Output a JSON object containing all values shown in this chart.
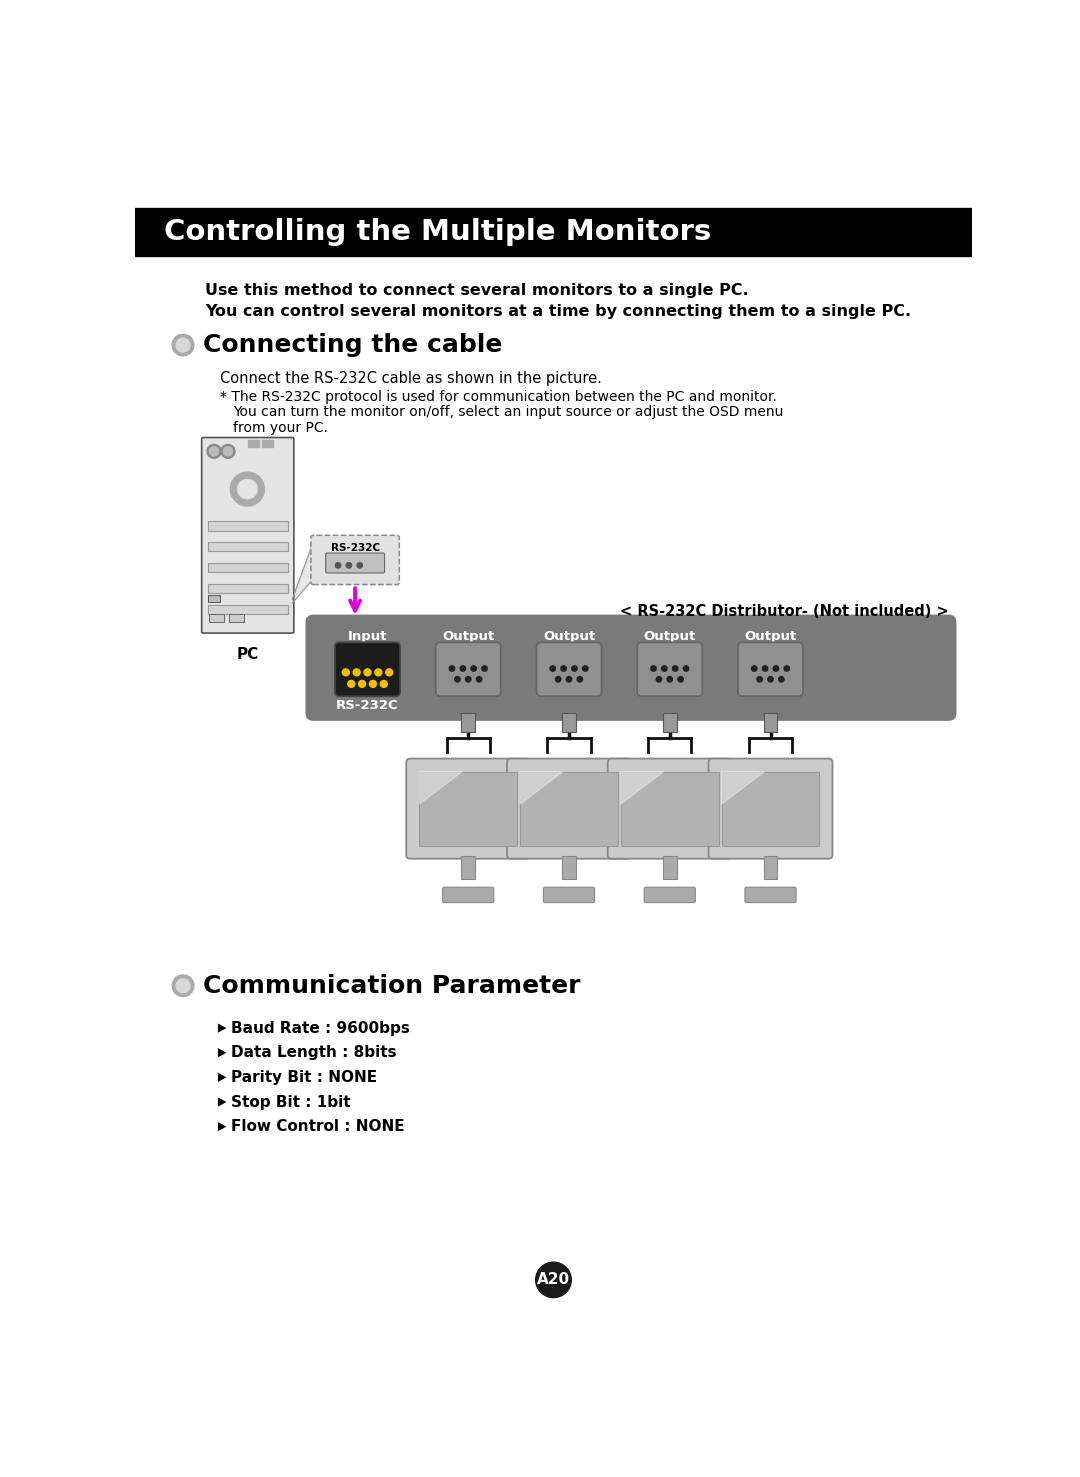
{
  "title": "Controlling the Multiple Monitors",
  "title_bg": "#000000",
  "title_color": "#ffffff",
  "page_bg": "#ffffff",
  "bold_text_1": "Use this method to connect several monitors to a single PC.",
  "bold_text_2": "You can control several monitors at a time by connecting them to a single PC.",
  "section1_title": "Connecting the cable",
  "section1_body_1": "Connect the RS-232C cable as shown in the picture.",
  "section1_body_2": "* The RS-232C protocol is used for communication between the PC and monitor.",
  "section1_body_3": "You can turn the monitor on/off, select an input source or adjust the OSD menu",
  "section1_body_4": "from your PC.",
  "distributor_label": "< RS-232C Distributor- (Not included) >",
  "input_label": "Input",
  "output_labels": [
    "Output",
    "Output",
    "Output",
    "Output"
  ],
  "rs232c_label": "RS-232C",
  "pc_label": "PC",
  "section2_title": "Communication Parameter",
  "comm_params": [
    "Baud Rate : 9600bps",
    "Data Length : 8bits",
    "Parity Bit : NONE",
    "Stop Bit : 1bit",
    "Flow Control : NONE"
  ],
  "page_num": "A20",
  "distributor_bg": "#7a7a7a",
  "monitor_body": "#c0c0c0",
  "monitor_screen": "#b0b0b0",
  "cable_color": "#111111",
  "arrow_color": "#dd00dd"
}
